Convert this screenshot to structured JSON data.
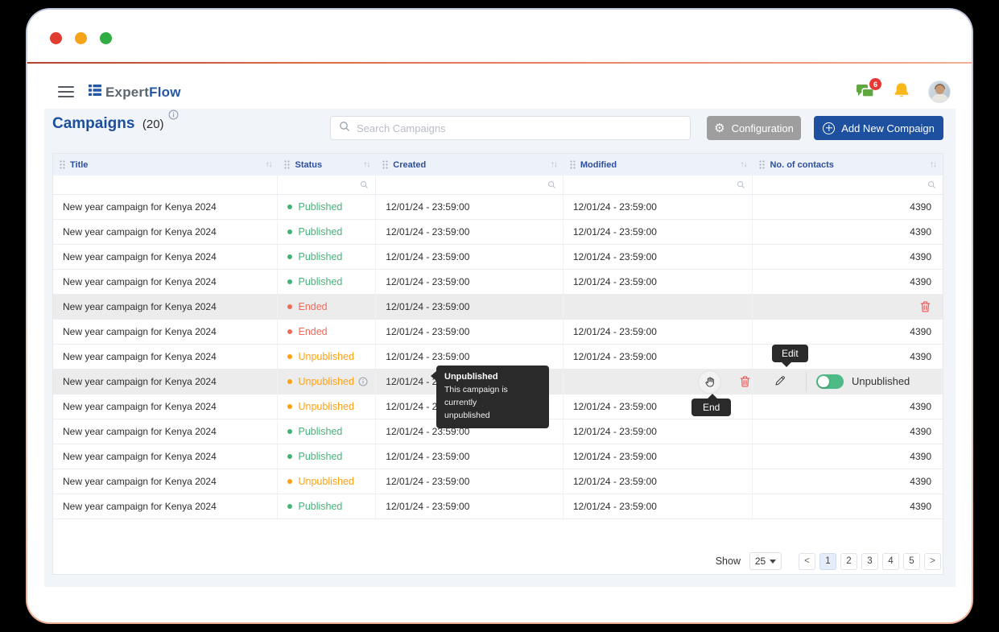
{
  "window": {
    "dots": [
      {
        "name": "close",
        "color": "#e03c31"
      },
      {
        "name": "minimize",
        "color": "#f5a31a"
      },
      {
        "name": "zoom",
        "color": "#2fae43"
      }
    ]
  },
  "navbar": {
    "brand_prefix": "Expert",
    "brand_suffix": "Flow",
    "chat_badge": "6"
  },
  "toolbar": {
    "title": "Campaigns",
    "count": "(20)",
    "search_placeholder": "Search Campaigns",
    "configuration_label": "Configuration",
    "add_label": "Add New Compaign"
  },
  "table": {
    "columns": [
      "Title",
      "Status",
      "Created",
      "Modified",
      "No. of contacts"
    ],
    "rows": [
      {
        "title": "New year campaign for Kenya 2024",
        "status": "Published",
        "type": "published",
        "created": "12/01/24 - 23:59:00",
        "modified": "12/01/24 - 23:59:00",
        "contacts": "4390",
        "variant": "normal"
      },
      {
        "title": "New year campaign for Kenya 2024",
        "status": "Published",
        "type": "published",
        "created": "12/01/24 - 23:59:00",
        "modified": "12/01/24 - 23:59:00",
        "contacts": "4390",
        "variant": "normal"
      },
      {
        "title": "New year campaign for Kenya 2024",
        "status": "Published",
        "type": "published",
        "created": "12/01/24 - 23:59:00",
        "modified": "12/01/24 - 23:59:00",
        "contacts": "4390",
        "variant": "normal"
      },
      {
        "title": "New year campaign for Kenya 2024",
        "status": "Published",
        "type": "published",
        "created": "12/01/24 - 23:59:00",
        "modified": "12/01/24 - 23:59:00",
        "contacts": "4390",
        "variant": "normal"
      },
      {
        "title": "New year campaign for Kenya 2024",
        "status": "Ended",
        "type": "ended",
        "created": "12/01/24 - 23:59:00",
        "modified": "",
        "contacts": "",
        "variant": "ended-hover"
      },
      {
        "title": "New year campaign for Kenya 2024",
        "status": "Ended",
        "type": "ended",
        "created": "12/01/24 - 23:59:00",
        "modified": "12/01/24 - 23:59:00",
        "contacts": "4390",
        "variant": "normal"
      },
      {
        "title": "New year campaign for Kenya 2024",
        "status": "Unpublished",
        "type": "unpublished",
        "created": "12/01/24 - 23:59:00",
        "modified": "12/01/24 - 23:59:00",
        "contacts": "4390",
        "variant": "normal"
      },
      {
        "title": "New year campaign for Kenya 2024",
        "status": "Unpublished",
        "type": "unpublished",
        "created": "12/01/24 - 23:59:00",
        "modified": "",
        "contacts": "",
        "variant": "action-hover",
        "info": true
      },
      {
        "title": "New year campaign for Kenya 2024",
        "status": "Unpublished",
        "type": "unpublished",
        "created": "12/01/24 - 23:59:00",
        "modified": "12/01/24 - 23:59:00",
        "contacts": "4390",
        "variant": "normal"
      },
      {
        "title": "New year campaign for Kenya 2024",
        "status": "Published",
        "type": "published",
        "created": "12/01/24 - 23:59:00",
        "modified": "12/01/24 - 23:59:00",
        "contacts": "4390",
        "variant": "normal"
      },
      {
        "title": "New year campaign for Kenya 2024",
        "status": "Published",
        "type": "published",
        "created": "12/01/24 - 23:59:00",
        "modified": "12/01/24 - 23:59:00",
        "contacts": "4390",
        "variant": "normal"
      },
      {
        "title": "New year campaign for Kenya 2024",
        "status": "Unpublished",
        "type": "unpublished",
        "created": "12/01/24 - 23:59:00",
        "modified": "12/01/24 - 23:59:00",
        "contacts": "4390",
        "variant": "normal"
      },
      {
        "title": "New year campaign for Kenya 2024",
        "status": "Published",
        "type": "published",
        "created": "12/01/24 - 23:59:00",
        "modified": "12/01/24 - 23:59:00",
        "contacts": "4390",
        "variant": "normal"
      }
    ]
  },
  "status_colors": {
    "published": "#45b378",
    "ended": "#ef6a5b",
    "unpublished": "#ffa115"
  },
  "tooltips": {
    "edit": "Edit",
    "end": "End",
    "status_title": "Unpublished",
    "status_line1": "This campaign is currently",
    "status_line2": "unpublished"
  },
  "actions": {
    "toggle_label": "Unpublished"
  },
  "pagination": {
    "show_label": "Show",
    "page_size": "25",
    "prev": "<",
    "next": ">",
    "pages": [
      "1",
      "2",
      "3",
      "4",
      "5"
    ],
    "active": "1"
  }
}
